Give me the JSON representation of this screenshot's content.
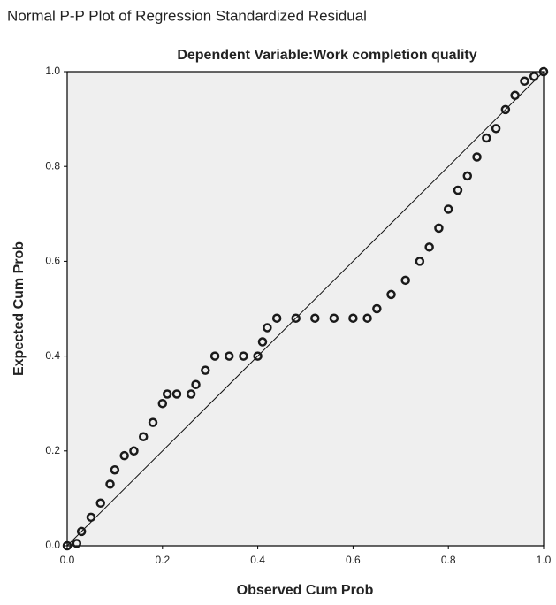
{
  "chart_data": {
    "type": "scatter",
    "title": "Normal P-P Plot of Regression Standardized Residual",
    "subtitle": "Dependent Variable:Work completion quality",
    "x_label": "Observed Cum Prob",
    "y_label": "Expected Cum Prob",
    "xlim": [
      0,
      1
    ],
    "ylim": [
      0,
      1
    ],
    "xticks": [
      {
        "value": 0,
        "label": "0.0"
      },
      0.2,
      0.4,
      0.6,
      0.8,
      {
        "value": 1,
        "label": "1.0"
      }
    ],
    "yticks": [
      {
        "value": 0,
        "label": "0.0"
      },
      0.2,
      0.4,
      0.6,
      0.8,
      {
        "value": 1,
        "label": "1.0"
      }
    ],
    "reference_line": true,
    "color": "#1a1a1a",
    "x": [
      0,
      0.02,
      0.03,
      0.05,
      0.07,
      0.09,
      0.1,
      0.12,
      0.14,
      0.16,
      0.18,
      0.2,
      0.21,
      0.23,
      0.26,
      0.27,
      0.29,
      0.31,
      0.34,
      0.37,
      0.4,
      0.41,
      0.42,
      0.44,
      0.48,
      0.52,
      0.56,
      0.6,
      0.63,
      0.65,
      0.68,
      0.71,
      0.74,
      0.76,
      0.78,
      0.8,
      0.82,
      0.84,
      0.86,
      0.88,
      0.9,
      0.92,
      0.94,
      0.96,
      0.98,
      1
    ],
    "values": [
      0,
      0.005,
      0.03,
      0.06,
      0.09,
      0.13,
      0.16,
      0.19,
      0.2,
      0.23,
      0.26,
      0.3,
      0.32,
      0.32,
      0.32,
      0.34,
      0.37,
      0.4,
      0.4,
      0.4,
      0.4,
      0.43,
      0.46,
      0.48,
      0.48,
      0.48,
      0.48,
      0.48,
      0.48,
      0.5,
      0.53,
      0.56,
      0.6,
      0.63,
      0.67,
      0.71,
      0.75,
      0.78,
      0.82,
      0.86,
      0.88,
      0.92,
      0.95,
      0.98,
      0.99,
      1
    ]
  }
}
